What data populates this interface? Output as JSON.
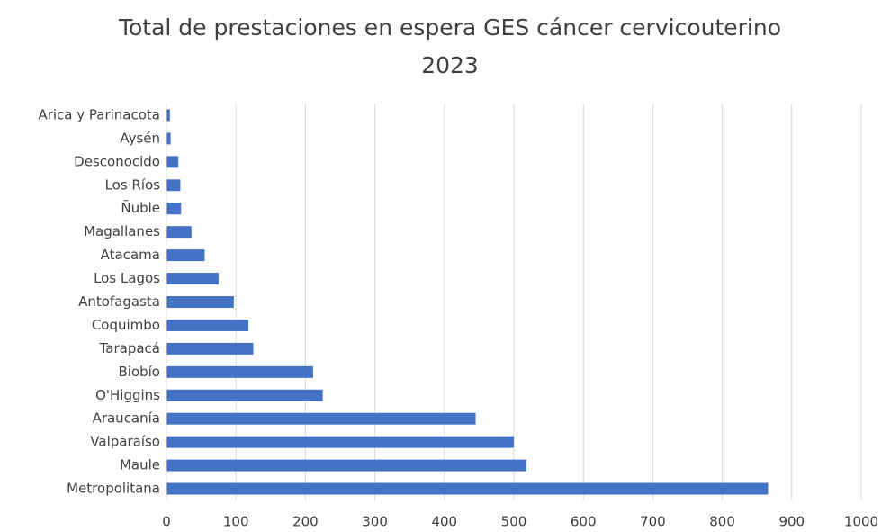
{
  "chart_data": {
    "type": "bar",
    "orientation": "horizontal",
    "title": "Total de prestaciones en espera GES cáncer cervicouterino 2023",
    "categories": [
      "Arica y Parinacota",
      "Aysén",
      "Desconocido",
      "Los Ríos",
      "Ñuble",
      "Magallanes",
      "Atacama",
      "Los Lagos",
      "Antofagasta",
      "Coquimbo",
      "Tarapacá",
      "Biobío",
      "O'Higgins",
      "Araucanía",
      "Valparaíso",
      "Maule",
      "Metropolitana"
    ],
    "values": [
      5,
      6,
      17,
      20,
      21,
      36,
      55,
      75,
      97,
      118,
      125,
      211,
      225,
      445,
      500,
      518,
      866
    ],
    "color": "#4472c4",
    "xlim": [
      0,
      1000
    ],
    "xticks": [
      0,
      100,
      200,
      300,
      400,
      500,
      600,
      700,
      800,
      900,
      1000
    ],
    "grid": true
  }
}
